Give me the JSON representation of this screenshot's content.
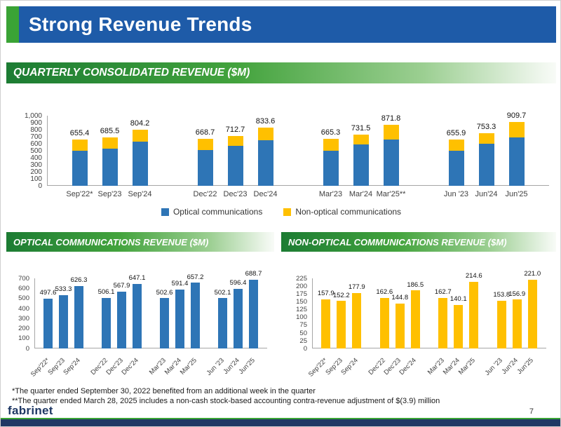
{
  "slide": {
    "title": "Strong Revenue Trends",
    "page_number": "7",
    "logo_text": "fabrinet",
    "footnote_1": "*The quarter ended September 30, 2022 benefited from an additional week in the quarter",
    "footnote_2": "**The quarter ended March 28, 2025 includes a non-cash stock-based accounting contra-revenue adjustment of $(3.9) million"
  },
  "banners": {
    "quarterly": "QUARTERLY CONSOLIDATED REVENUE ($M)",
    "optical": "OPTICAL COMMUNICATIONS REVENUE ($M)",
    "non_optical": "NON-OPTICAL COMMUNICATIONS REVENUE ($M)"
  },
  "legend": {
    "optical": "Optical communications",
    "non_optical": "Non-optical communications"
  },
  "colors": {
    "header_blue": "#1e5ba8",
    "accent_green": "#3aa335",
    "footer_navy": "#1f3864",
    "optical_bar": "#2E75B6",
    "non_optical_bar": "#FFC000"
  },
  "chart_data": [
    {
      "id": "quarterly-consolidated",
      "type": "bar",
      "stacked": true,
      "title": "QUARTERLY CONSOLIDATED REVENUE ($M)",
      "categories": [
        "Sep'22*",
        "Sep'23",
        "Sep'24",
        "Dec'22",
        "Dec'23",
        "Dec'24",
        "Mar'23",
        "Mar'24",
        "Mar'25**",
        "Jun '23",
        "Jun'24",
        "Jun'25"
      ],
      "group_size": 3,
      "series": [
        {
          "name": "Optical communications",
          "color": "#2E75B6",
          "values": [
            497.6,
            533.3,
            626.3,
            506.1,
            567.9,
            647.1,
            502.6,
            591.4,
            657.2,
            502.1,
            596.4,
            688.7
          ]
        },
        {
          "name": "Non-optical communications",
          "color": "#FFC000",
          "values": [
            157.9,
            152.2,
            177.9,
            162.6,
            144.8,
            186.5,
            162.7,
            140.1,
            214.6,
            153.8,
            156.9,
            221.0
          ]
        }
      ],
      "total_labels": [
        "655.4",
        "685.5",
        "804.2",
        "668.7",
        "712.7",
        "833.6",
        "665.3",
        "731.5",
        "871.8",
        "655.9",
        "753.3",
        "909.7"
      ],
      "ylim": [
        0,
        1000
      ],
      "ytick_step": 100,
      "ytick_labels": [
        "0",
        "100",
        "200",
        "300",
        "400",
        "500",
        "600",
        "700",
        "800",
        "900",
        "1,000"
      ],
      "legend_position": "bottom",
      "grid": false
    },
    {
      "id": "optical-communications",
      "type": "bar",
      "stacked": false,
      "title": "OPTICAL COMMUNICATIONS REVENUE ($M)",
      "categories": [
        "Sep'22*",
        "Sep'23",
        "Sep'24",
        "Dec'22",
        "Dec'23",
        "Dec'24",
        "Mar'23",
        "Mar'24",
        "Mar'25",
        "Jun '23",
        "Jun'24",
        "Jun'25"
      ],
      "group_size": 3,
      "series": [
        {
          "name": "Optical communications",
          "color": "#2E75B6",
          "values": [
            497.6,
            533.3,
            626.3,
            506.1,
            567.9,
            647.1,
            502.6,
            591.4,
            657.2,
            502.1,
            596.4,
            688.7
          ]
        }
      ],
      "value_labels": [
        "497.6",
        "533.3",
        "626.3",
        "506.1",
        "567.9",
        "647.1",
        "502.6",
        "591.4",
        "657.2",
        "502.1",
        "596.4",
        "688.7"
      ],
      "ylim": [
        0,
        700
      ],
      "ytick_step": 100,
      "ytick_labels": [
        "0",
        "100",
        "200",
        "300",
        "400",
        "500",
        "600",
        "700"
      ],
      "x_label_rotation": -45,
      "grid": false
    },
    {
      "id": "non-optical-communications",
      "type": "bar",
      "stacked": false,
      "title": "NON-OPTICAL COMMUNICATIONS REVENUE ($M)",
      "categories": [
        "Sep'22*",
        "Sep'23",
        "Sep'24",
        "Dec'22",
        "Dec'23",
        "Dec'24",
        "Mar'23",
        "Mar'24",
        "Mar'25",
        "Jun '23",
        "Jun'24",
        "Jun'25"
      ],
      "group_size": 3,
      "series": [
        {
          "name": "Non-optical communications",
          "color": "#FFC000",
          "values": [
            157.9,
            152.2,
            177.9,
            162.6,
            144.8,
            186.5,
            162.7,
            140.1,
            214.6,
            153.8,
            156.9,
            221.0
          ]
        }
      ],
      "value_labels": [
        "157.9",
        "152.2",
        "177.9",
        "162.6",
        "144.8",
        "186.5",
        "162.7",
        "140.1",
        "214.6",
        "153.8",
        "156.9",
        "221.0"
      ],
      "ylim": [
        0,
        225
      ],
      "ytick_step": 25,
      "ytick_labels": [
        "0",
        "25",
        "50",
        "75",
        "100",
        "125",
        "150",
        "175",
        "200",
        "225"
      ],
      "x_label_rotation": -45,
      "grid": false
    }
  ]
}
